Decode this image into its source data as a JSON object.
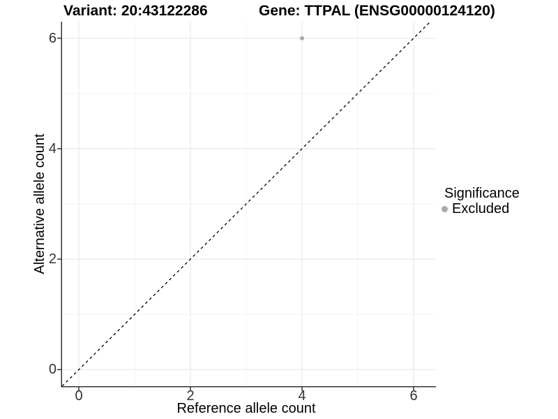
{
  "chart_data": {
    "type": "scatter",
    "title_variant": "Variant: 20:43122286",
    "title_gene": "Gene: TTPAL (ENSG00000124120)",
    "xlabel": "Reference allele count",
    "ylabel": "Alternative allele count",
    "xlim": [
      -0.3,
      6.4
    ],
    "ylim": [
      -0.3,
      6.3
    ],
    "x_ticks": [
      0,
      2,
      4,
      6
    ],
    "y_ticks": [
      0,
      2,
      4,
      6
    ],
    "minor_grid_x": [
      1,
      3,
      5
    ],
    "minor_grid_y": [
      1,
      3,
      5
    ],
    "grid": "on",
    "identity_line": {
      "style": "dashed",
      "slope": 1,
      "intercept": 0,
      "color": "#000000"
    },
    "series": [
      {
        "name": "Excluded",
        "color": "#aaaaaa",
        "points": [
          [
            4,
            6
          ]
        ]
      }
    ],
    "legend": {
      "title": "Significance",
      "position": "right",
      "items": [
        {
          "label": "Excluded",
          "color": "#aaaaaa"
        }
      ]
    }
  },
  "colors": {
    "background": "#ffffff",
    "axis_line": "#333333",
    "tick_label": "#333333",
    "grid_major": "#e9e9e9",
    "grid_minor": "#f3f3f3",
    "point": "#aaaaaa"
  }
}
